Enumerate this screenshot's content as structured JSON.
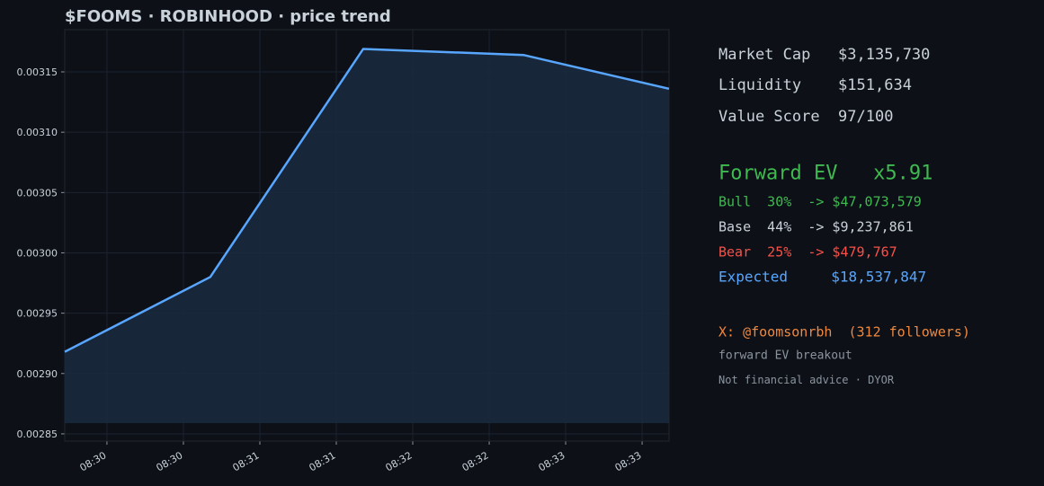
{
  "chart_data": {
    "type": "area",
    "title": "$FOOMS · ROBINHOOD  ·  price trend",
    "x": [
      509.724,
      510.676,
      511.676,
      512.724,
      513.676
    ],
    "values": [
      0.002918,
      0.00298,
      0.003169,
      0.003164,
      0.003136
    ],
    "color": "#58a6ff",
    "fill": "#1a2a3f",
    "xlim": [
      509.724,
      513.676
    ],
    "xticks": [
      {
        "value": 510,
        "label": "08:30"
      },
      {
        "value": 510.5,
        "label": "08:30"
      },
      {
        "value": 511,
        "label": "08:31"
      },
      {
        "value": 511.5,
        "label": "08:31"
      },
      {
        "value": 512,
        "label": "08:32"
      },
      {
        "value": 512.5,
        "label": "08:32"
      },
      {
        "value": 513,
        "label": "08:33"
      },
      {
        "value": 513.5,
        "label": "08:33"
      }
    ],
    "ylim": [
      0.002844,
      0.003185
    ],
    "yticks": [
      0.00285,
      {
        "value": 0.0029,
        "label": "0.00290"
      },
      0.00295,
      {
        "value": 0.003,
        "label": "0.00300"
      },
      0.00305,
      {
        "value": 0.0031,
        "label": "0.00310"
      },
      0.00315
    ],
    "grid": true
  },
  "panel": {
    "lines": [
      "Market Cap   $3,135,730",
      "Liquidity    $151,634",
      "Value Score  97/100",
      "Forward EV   x5.91",
      "Bull  30%  -> $47,073,579",
      "Base  44%  -> $9,237,861",
      "Bear  25%  -> $479,767",
      "Expected     $18,537,847",
      "X: @foomsonrbh  (312 followers)",
      "forward EV breakout",
      "Not financial advice · DYOR"
    ]
  }
}
